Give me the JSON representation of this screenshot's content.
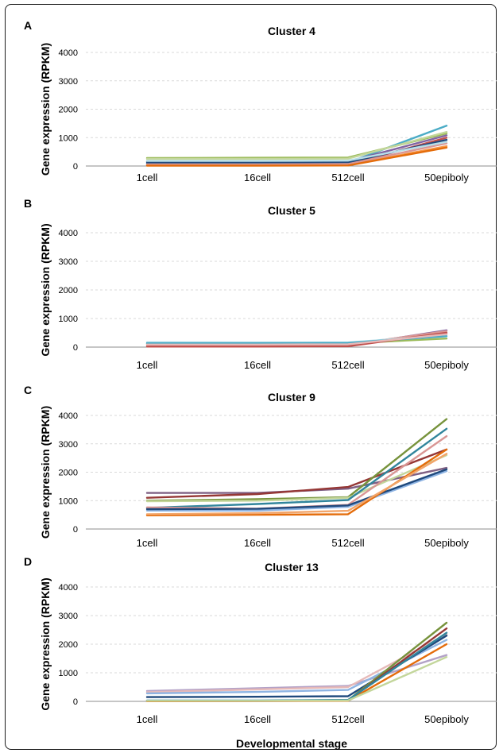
{
  "figure": {
    "xlabel": "Developmental stage"
  },
  "chart_data": [
    {
      "panel": "A",
      "type": "line",
      "title": "Cluster 4",
      "ylabel": "Gene expression (RPKM)",
      "xlabel": "",
      "categories": [
        "1cell",
        "16cell",
        "512cell",
        "50epiboly"
      ],
      "ylim": [
        0,
        4000
      ],
      "yticks": [
        "0",
        "1000",
        "2000",
        "3000",
        "4000"
      ],
      "grid": true,
      "series": [
        {
          "color": "#4bacc6",
          "values": [
            100,
            110,
            120,
            1420
          ]
        },
        {
          "color": "#9bbb59",
          "values": [
            280,
            290,
            300,
            1150
          ]
        },
        {
          "color": "#8064a2",
          "values": [
            150,
            150,
            160,
            1080
          ]
        },
        {
          "color": "#c0504d",
          "values": [
            40,
            40,
            50,
            1000
          ]
        },
        {
          "color": "#1f497d",
          "values": [
            120,
            130,
            130,
            920
          ]
        },
        {
          "color": "#f79646",
          "values": [
            20,
            30,
            30,
            700
          ]
        },
        {
          "color": "#d99694",
          "values": [
            60,
            60,
            70,
            800
          ]
        },
        {
          "color": "#c3d69b",
          "values": [
            250,
            250,
            260,
            1200
          ]
        },
        {
          "color": "#b7dee8",
          "values": [
            180,
            180,
            190,
            850
          ]
        },
        {
          "color": "#e46c0a",
          "values": [
            10,
            10,
            20,
            650
          ]
        }
      ]
    },
    {
      "panel": "B",
      "type": "line",
      "title": "Cluster 5",
      "ylabel": "Gene expression (RPKM)",
      "xlabel": "",
      "categories": [
        "1cell",
        "16cell",
        "512cell",
        "50epiboly"
      ],
      "ylim": [
        0,
        4000
      ],
      "yticks": [
        "0",
        "1000",
        "2000",
        "3000",
        "4000"
      ],
      "grid": true,
      "series": [
        {
          "color": "#8064a2",
          "values": [
            30,
            40,
            50,
            590
          ]
        },
        {
          "color": "#d99694",
          "values": [
            60,
            70,
            80,
            560
          ]
        },
        {
          "color": "#b7dee8",
          "values": [
            170,
            160,
            160,
            420
          ]
        },
        {
          "color": "#9bbb59",
          "values": [
            120,
            120,
            130,
            300
          ]
        },
        {
          "color": "#4bacc6",
          "values": [
            140,
            140,
            150,
            380
          ]
        },
        {
          "color": "#c0504d",
          "values": [
            20,
            20,
            30,
            500
          ]
        },
        {
          "color": "#e6b9b8",
          "values": [
            90,
            90,
            100,
            450
          ]
        }
      ]
    },
    {
      "panel": "C",
      "type": "line",
      "title": "Cluster 9",
      "ylabel": "Gene expression (RPKM)",
      "xlabel": "",
      "categories": [
        "1cell",
        "16cell",
        "512cell",
        "50epiboly"
      ],
      "ylim": [
        0,
        4000
      ],
      "yticks": [
        "0",
        "1000",
        "2000",
        "3000",
        "4000"
      ],
      "grid": true,
      "series": [
        {
          "color": "#7f6084",
          "values": [
            1270,
            1270,
            1420,
            2150
          ]
        },
        {
          "color": "#953735",
          "values": [
            1100,
            1230,
            1480,
            2800
          ]
        },
        {
          "color": "#77933c",
          "values": [
            1000,
            1050,
            1120,
            3870
          ]
        },
        {
          "color": "#c3d69b",
          "values": [
            980,
            1000,
            1100,
            2600
          ]
        },
        {
          "color": "#31859c",
          "values": [
            740,
            880,
            1020,
            3530
          ]
        },
        {
          "color": "#d99694",
          "values": [
            760,
            720,
            850,
            3270
          ]
        },
        {
          "color": "#8eb4e3",
          "values": [
            650,
            650,
            780,
            2040
          ]
        },
        {
          "color": "#1f497d",
          "values": [
            700,
            710,
            830,
            2100
          ]
        },
        {
          "color": "#e46c0a",
          "values": [
            480,
            500,
            520,
            2800
          ]
        },
        {
          "color": "#f2a56a",
          "values": [
            520,
            560,
            640,
            2650
          ]
        }
      ]
    },
    {
      "panel": "D",
      "type": "line",
      "title": "Cluster 13",
      "ylabel": "Gene expression (RPKM)",
      "xlabel": "",
      "categories": [
        "1cell",
        "16cell",
        "512cell",
        "50epiboly"
      ],
      "ylim": [
        0,
        4000
      ],
      "yticks": [
        "0",
        "1000",
        "2000",
        "3000",
        "4000"
      ],
      "grid": true,
      "series": [
        {
          "color": "#b3a2c7",
          "values": [
            360,
            460,
            540,
            1620
          ]
        },
        {
          "color": "#e6b9b8",
          "values": [
            320,
            420,
            500,
            2350
          ]
        },
        {
          "color": "#8eb4e3",
          "values": [
            280,
            330,
            400,
            2150
          ]
        },
        {
          "color": "#1f497d",
          "values": [
            150,
            160,
            180,
            2300
          ]
        },
        {
          "color": "#77933c",
          "values": [
            10,
            20,
            40,
            2750
          ]
        },
        {
          "color": "#953735",
          "values": [
            10,
            10,
            30,
            2550
          ]
        },
        {
          "color": "#e46c0a",
          "values": [
            5,
            10,
            20,
            2000
          ]
        },
        {
          "color": "#31859c",
          "values": [
            30,
            30,
            50,
            2400
          ]
        },
        {
          "color": "#c3d69b",
          "values": [
            20,
            20,
            30,
            1550
          ]
        }
      ]
    }
  ]
}
